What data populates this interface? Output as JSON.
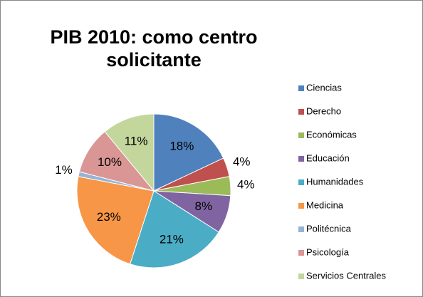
{
  "chart_data": {
    "type": "pie",
    "title": "PIB 2010: como centro solicitante",
    "categories": [
      "Ciencias",
      "Derecho",
      "Económicas",
      "Educación",
      "Humanidades",
      "Medicina",
      "Politécnica",
      "Psicología",
      "Servicios Centrales"
    ],
    "values": [
      18,
      4,
      4,
      8,
      21,
      23,
      1,
      10,
      11
    ],
    "value_labels": [
      "18%",
      "4%",
      "4%",
      "8%",
      "21%",
      "23%",
      "1%",
      "10%",
      "11%"
    ],
    "colors": [
      "#4F81BD",
      "#C0504D",
      "#9BBB59",
      "#8064A2",
      "#4BACC6",
      "#F79646",
      "#95B3D7",
      "#D99694",
      "#C3D69B"
    ],
    "legend": "right"
  }
}
